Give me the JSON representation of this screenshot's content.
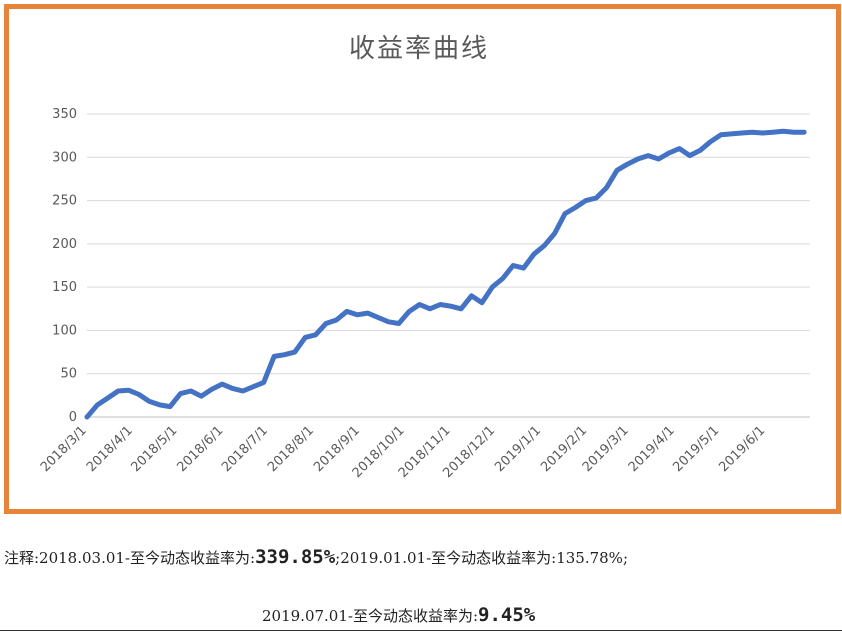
{
  "chart_data": {
    "type": "line",
    "title": "收益率曲线",
    "xlabel": "",
    "ylabel": "",
    "ylim": [
      0,
      350
    ],
    "yticks": [
      0,
      50,
      100,
      150,
      200,
      250,
      300,
      350
    ],
    "grid": true,
    "legend": "none",
    "line_color": "#4472c4",
    "x_tick_labels": [
      "2018/3/1",
      "2018/4/1",
      "2018/5/1",
      "2018/6/1",
      "2018/7/1",
      "2018/8/1",
      "2018/9/1",
      "2018/10/1",
      "2018/11/1",
      "2018/12/1",
      "2019/1/1",
      "2019/2/1",
      "2019/3/1",
      "2019/4/1",
      "2019/5/1",
      "2019/6/1"
    ],
    "series": [
      {
        "x": [
          "2018-03-01",
          "2018-03-08",
          "2018-03-15",
          "2018-03-22",
          "2018-03-29",
          "2018-04-05",
          "2018-04-12",
          "2018-04-19",
          "2018-04-26",
          "2018-05-03",
          "2018-05-10",
          "2018-05-17",
          "2018-05-24",
          "2018-05-31",
          "2018-06-07",
          "2018-06-14",
          "2018-06-21",
          "2018-06-28",
          "2018-07-05",
          "2018-07-12",
          "2018-07-19",
          "2018-07-26",
          "2018-08-02",
          "2018-08-09",
          "2018-08-16",
          "2018-08-23",
          "2018-08-30",
          "2018-09-06",
          "2018-09-13",
          "2018-09-20",
          "2018-09-27",
          "2018-10-04",
          "2018-10-11",
          "2018-10-18",
          "2018-10-25",
          "2018-11-01",
          "2018-11-08",
          "2018-11-15",
          "2018-11-22",
          "2018-11-29",
          "2018-12-06",
          "2018-12-13",
          "2018-12-20",
          "2018-12-27",
          "2019-01-03",
          "2019-01-10",
          "2019-01-17",
          "2019-01-24",
          "2019-01-31",
          "2019-02-07",
          "2019-02-14",
          "2019-02-21",
          "2019-02-28",
          "2019-03-07",
          "2019-03-14",
          "2019-03-21",
          "2019-03-28",
          "2019-04-04",
          "2019-04-11",
          "2019-04-18",
          "2019-04-25",
          "2019-05-02",
          "2019-05-09",
          "2019-05-16",
          "2019-05-23",
          "2019-05-30",
          "2019-06-06",
          "2019-06-13",
          "2019-06-20",
          "2019-06-27"
        ],
        "values": [
          0,
          14,
          22,
          30,
          31,
          26,
          18,
          14,
          12,
          27,
          30,
          24,
          32,
          38,
          33,
          30,
          35,
          40,
          70,
          72,
          75,
          92,
          95,
          108,
          112,
          122,
          118,
          120,
          115,
          110,
          108,
          122,
          130,
          125,
          130,
          128,
          125,
          140,
          132,
          150,
          160,
          175,
          172,
          188,
          198,
          212,
          235,
          242,
          250,
          253,
          265,
          285,
          292,
          298,
          302,
          298,
          305,
          310,
          302,
          308,
          318,
          326,
          327,
          328,
          329,
          328,
          329,
          330,
          329,
          329
        ]
      }
    ]
  },
  "notes": {
    "line1_a": "注释:2018.03.01-至今动态收益率为:",
    "line1_b": "339.85%",
    "line1_c": ";2019.01.01-至今动态收益率为:135.78%;",
    "line2_a": "2019.07.01-至今动态收益率为:",
    "line2_b": "9.45%"
  }
}
